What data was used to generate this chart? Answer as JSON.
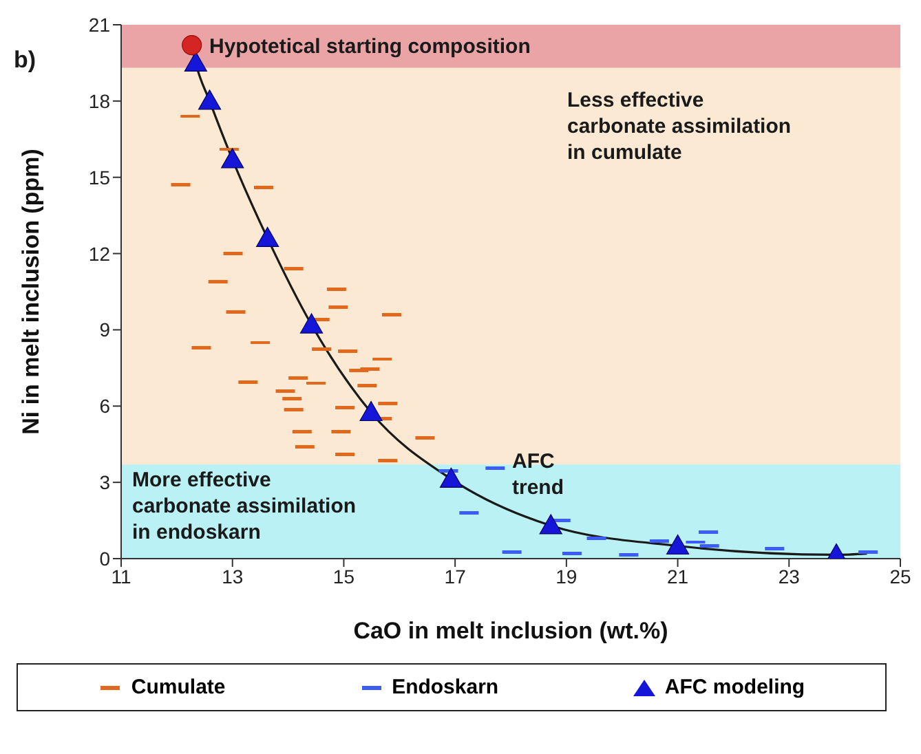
{
  "chart_data": {
    "type": "scatter",
    "xlabel": "CaO in melt inclusion (wt.%)",
    "ylabel": "Ni in melt inclusion (ppm)",
    "xlim": [
      11,
      25
    ],
    "xticks": [
      11,
      13,
      15,
      17,
      19,
      21,
      23,
      25
    ],
    "ylim": [
      0,
      21
    ],
    "yticks": [
      0,
      3,
      6,
      9,
      12,
      15,
      18,
      21
    ],
    "grid": false,
    "legend": "bottom",
    "annotations": [
      "b)",
      "AFC trend"
    ],
    "bands": [
      {
        "axis": "y",
        "from": 19.3,
        "to": 21,
        "label": "Hypotetical starting composition",
        "color": "#eaa4a6"
      },
      {
        "axis": "y",
        "from": 3.7,
        "to": 19.3,
        "label": "Less effective carbonate assimilation in cumulate",
        "color": "#fbe9d3"
      },
      {
        "axis": "y",
        "from": 0,
        "to": 3.7,
        "label": "More effective carbonate assimilation in endoskarn",
        "color": "#baf1f5"
      }
    ],
    "series": [
      {
        "name": "Cumulate",
        "color": "#e0691e",
        "x": [
          12.24,
          12.94,
          12.07,
          13.56,
          13.01,
          14.1,
          12.74,
          14.87,
          13.06,
          14.9,
          15.86,
          14.57,
          12.44,
          13.5,
          14.6,
          15.07,
          15.69,
          15.27,
          15.47,
          13.28,
          14.18,
          14.5,
          15.42,
          13.95,
          14.07,
          14.1,
          15.02,
          15.79,
          15.69,
          14.25,
          14.95,
          14.3,
          16.46,
          15.02,
          15.79
        ],
        "values": [
          17.4,
          16.1,
          14.7,
          14.6,
          12.0,
          11.4,
          10.9,
          10.6,
          9.7,
          9.9,
          9.6,
          9.4,
          8.3,
          8.5,
          8.25,
          8.15,
          7.85,
          7.4,
          7.45,
          6.95,
          7.1,
          6.9,
          6.8,
          6.6,
          6.3,
          5.85,
          5.95,
          6.1,
          5.5,
          5.0,
          5.0,
          4.4,
          4.75,
          4.1,
          3.85
        ]
      },
      {
        "name": "Endoskarn",
        "color": "#3c5cf5",
        "x": [
          16.88,
          17.72,
          17.25,
          18.02,
          18.9,
          19.54,
          19.1,
          20.12,
          20.67,
          21.32,
          21.55,
          21.57,
          22.74,
          24.42
        ],
        "values": [
          3.45,
          3.55,
          1.8,
          0.25,
          1.5,
          0.8,
          0.2,
          0.15,
          0.7,
          0.65,
          1.05,
          0.5,
          0.4,
          0.25
        ]
      },
      {
        "type": "line",
        "marker": "none",
        "line_style": "solid",
        "color": "#1a1a1a",
        "x": [
          12.27,
          12.34,
          12.59,
          13.0,
          13.63,
          14.42,
          15.49,
          16.93,
          18.72,
          21.0,
          23.85,
          24.4
        ],
        "values": [
          20.2,
          19.5,
          18.0,
          15.7,
          12.6,
          9.2,
          5.75,
          3.13,
          1.3,
          0.5,
          0.15,
          0.2
        ]
      },
      {
        "name": "AFC modeling",
        "type": "scatter",
        "marker": "triangle",
        "color": "#1616d8",
        "x": [
          12.34,
          12.59,
          13.0,
          13.63,
          14.42,
          15.49,
          16.93,
          18.72,
          21.0,
          23.85
        ],
        "values": [
          19.5,
          18.0,
          15.7,
          12.6,
          9.2,
          5.75,
          3.13,
          1.3,
          0.5,
          0.15
        ]
      },
      {
        "type": "scatter",
        "marker": "circle",
        "color": "#d42424",
        "x": [
          12.27
        ],
        "values": [
          20.2
        ]
      }
    ]
  }
}
